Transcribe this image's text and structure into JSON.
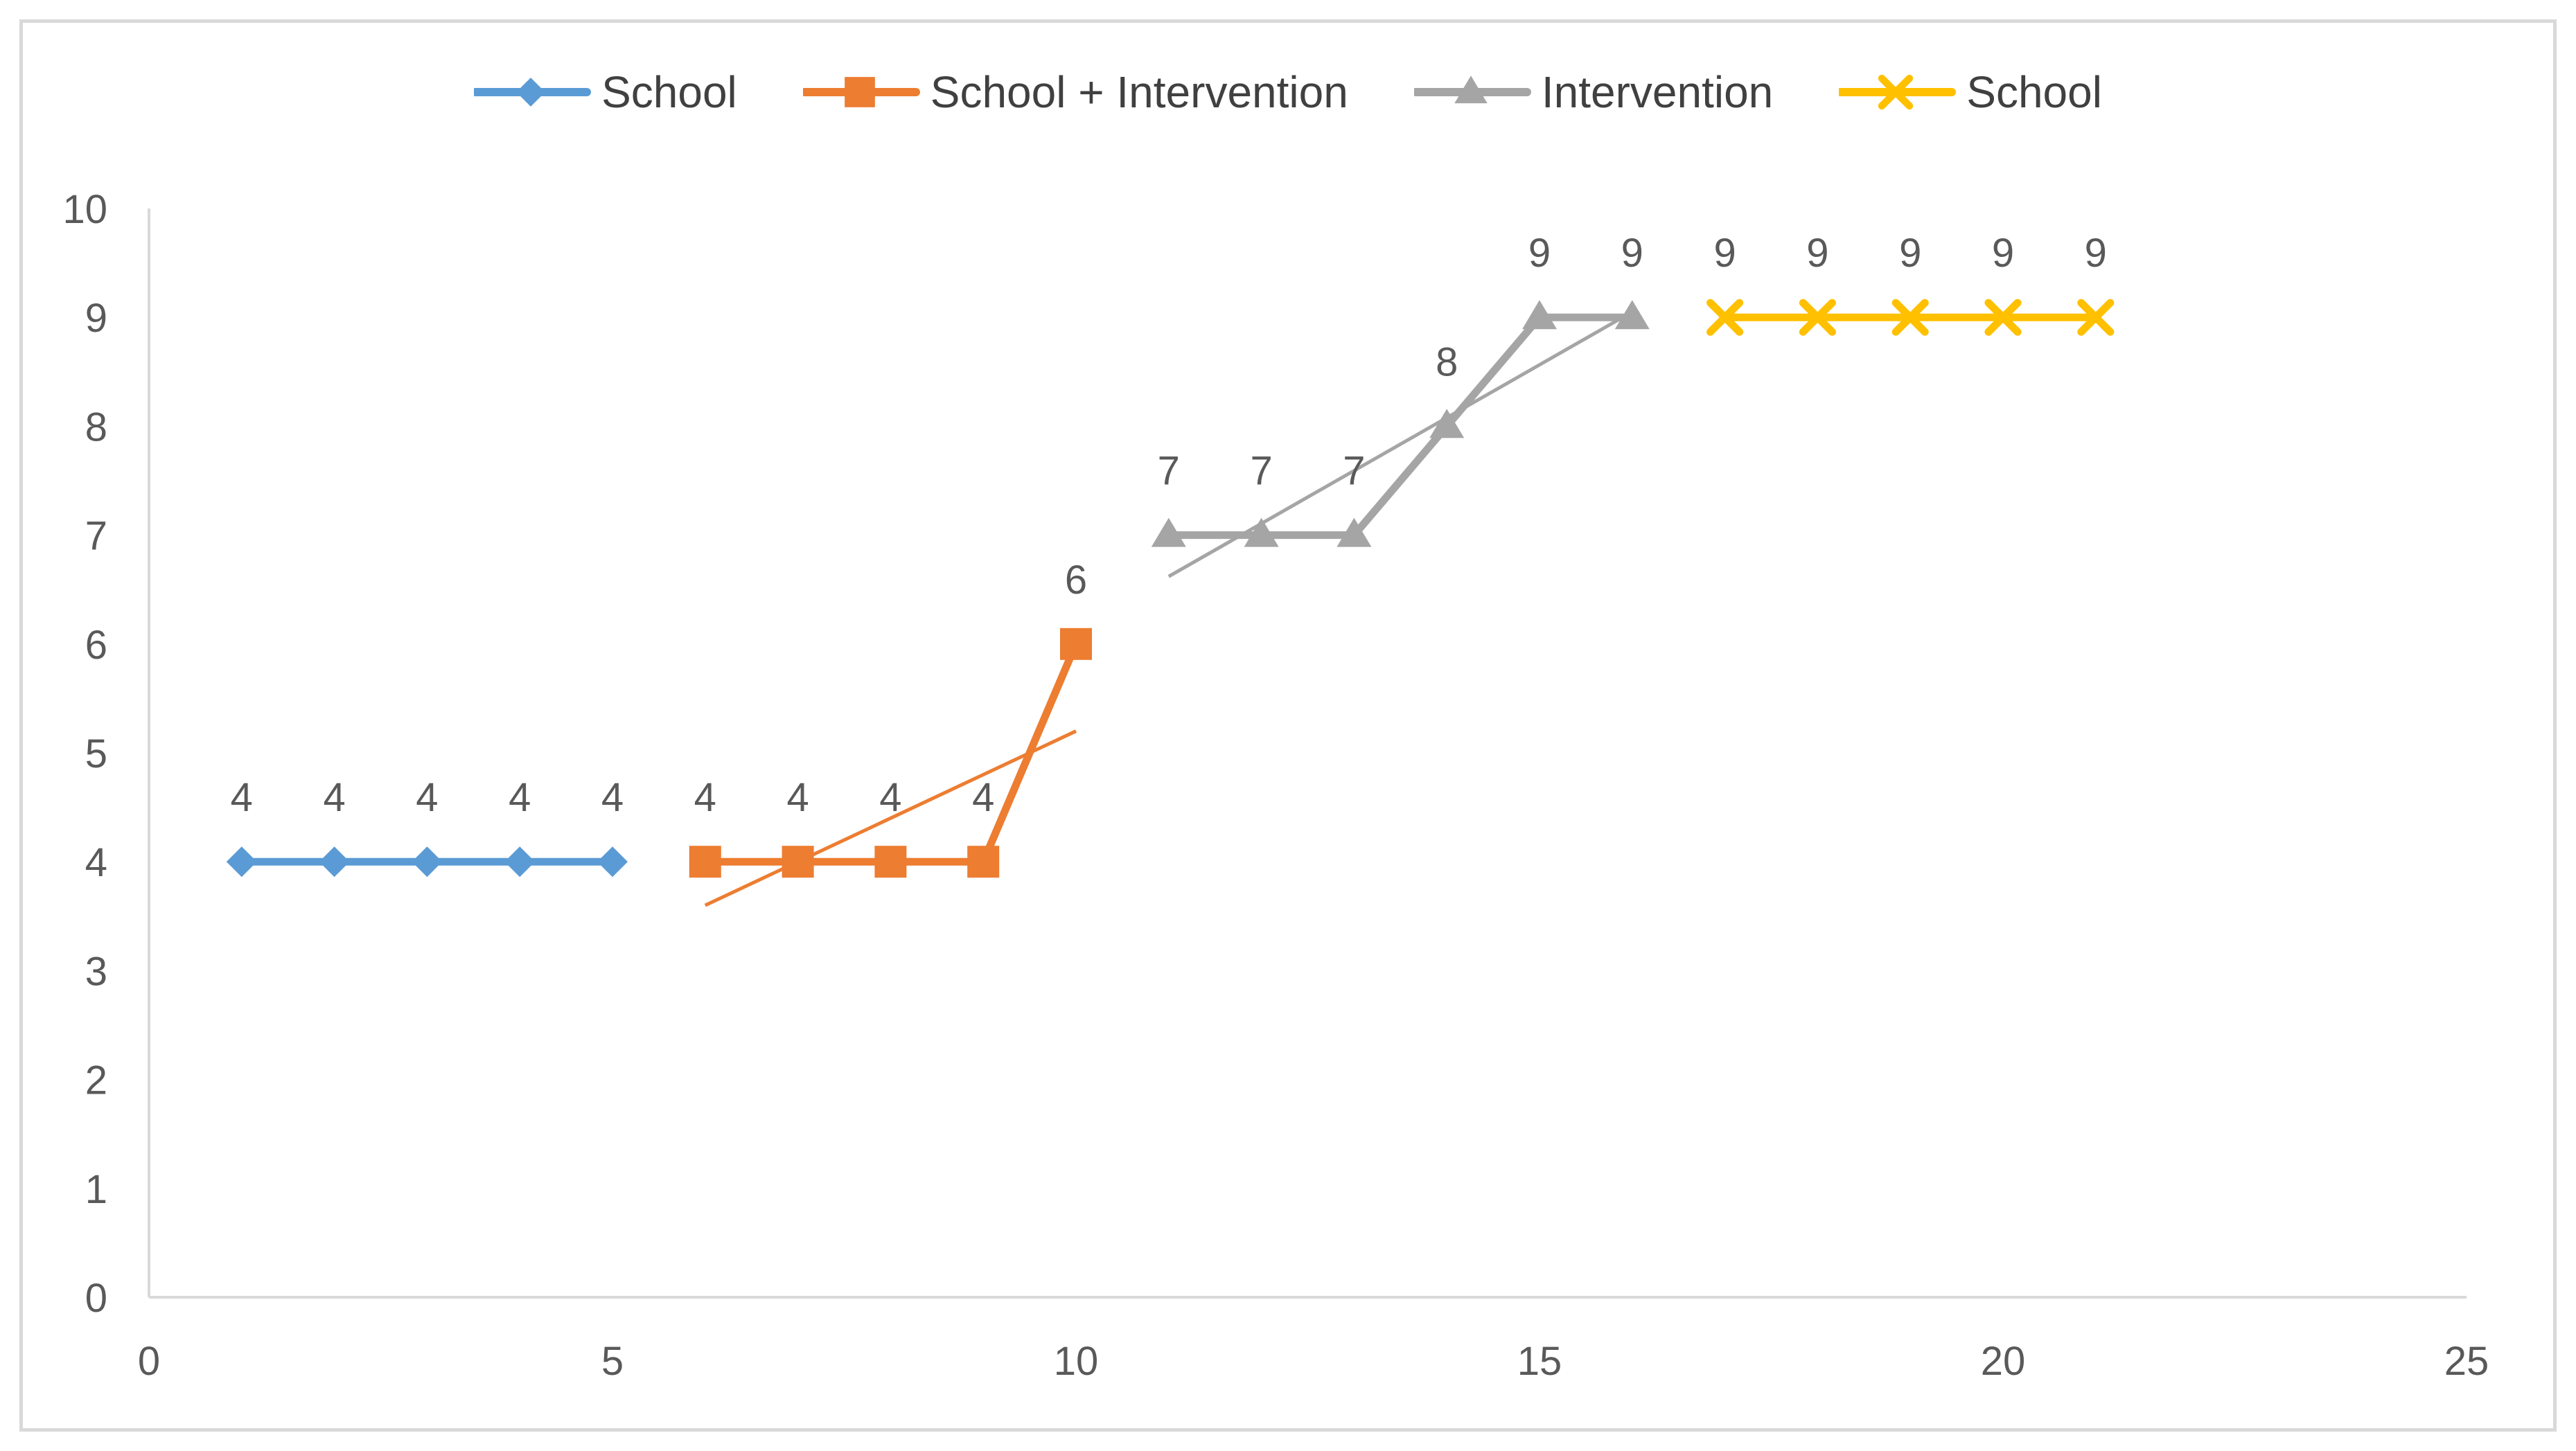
{
  "figure": {
    "background_color": "#FFFFFF",
    "border_color": "#D9D9D9",
    "axis_line_color": "#D9D9D9",
    "tick_label_color": "#595959",
    "data_label_color": "#595959",
    "legend_text_color": "#404040"
  },
  "chart_data": {
    "type": "line",
    "title": "",
    "xlabel": "",
    "ylabel": "",
    "xlim": [
      0,
      25
    ],
    "ylim": [
      0,
      10
    ],
    "x_ticks": [
      "0",
      "5",
      "10",
      "15",
      "20",
      "25"
    ],
    "x_tick_values": [
      0,
      5,
      10,
      15,
      20,
      25
    ],
    "y_ticks": [
      "0",
      "1",
      "2",
      "3",
      "4",
      "5",
      "6",
      "7",
      "8",
      "9",
      "10"
    ],
    "y_tick_values": [
      0,
      1,
      2,
      3,
      4,
      5,
      6,
      7,
      8,
      9,
      10
    ],
    "grid": false,
    "legend_position": "top-center",
    "series": [
      {
        "name": "School",
        "color": "#5B9BD5",
        "marker": "diamond",
        "x": [
          1,
          2,
          3,
          4,
          5
        ],
        "values": [
          4,
          4,
          4,
          4,
          4
        ],
        "labels": [
          "4",
          "4",
          "4",
          "4",
          "4"
        ]
      },
      {
        "name": "School + Intervention",
        "color": "#ED7D31",
        "marker": "square",
        "x": [
          6,
          7,
          8,
          9,
          10
        ],
        "values": [
          4,
          4,
          4,
          4,
          6
        ],
        "labels": [
          "4",
          "4",
          "4",
          "4",
          "6"
        ]
      },
      {
        "name": "Intervention",
        "color": "#A5A5A5",
        "marker": "triangle",
        "x": [
          11,
          12,
          13,
          14,
          15,
          16
        ],
        "values": [
          7,
          7,
          7,
          8,
          9,
          9
        ],
        "labels": [
          "7",
          "7",
          "7",
          "8",
          "9",
          "9"
        ]
      },
      {
        "name": "School",
        "color": "#FFC000",
        "marker": "x",
        "x": [
          17,
          18,
          19,
          20,
          21
        ],
        "values": [
          9,
          9,
          9,
          9,
          9
        ],
        "labels": [
          "9",
          "9",
          "9",
          "9",
          "9"
        ]
      }
    ],
    "trendlines": [
      {
        "for_series": "School + Intervention",
        "color": "#ED7D31",
        "style": "solid",
        "x": [
          6,
          10
        ],
        "y": [
          3.6,
          5.2
        ]
      },
      {
        "for_series": "Intervention",
        "color": "#A5A5A5",
        "style": "solid",
        "x": [
          11,
          16
        ],
        "y": [
          6.62,
          9.05
        ]
      }
    ]
  }
}
